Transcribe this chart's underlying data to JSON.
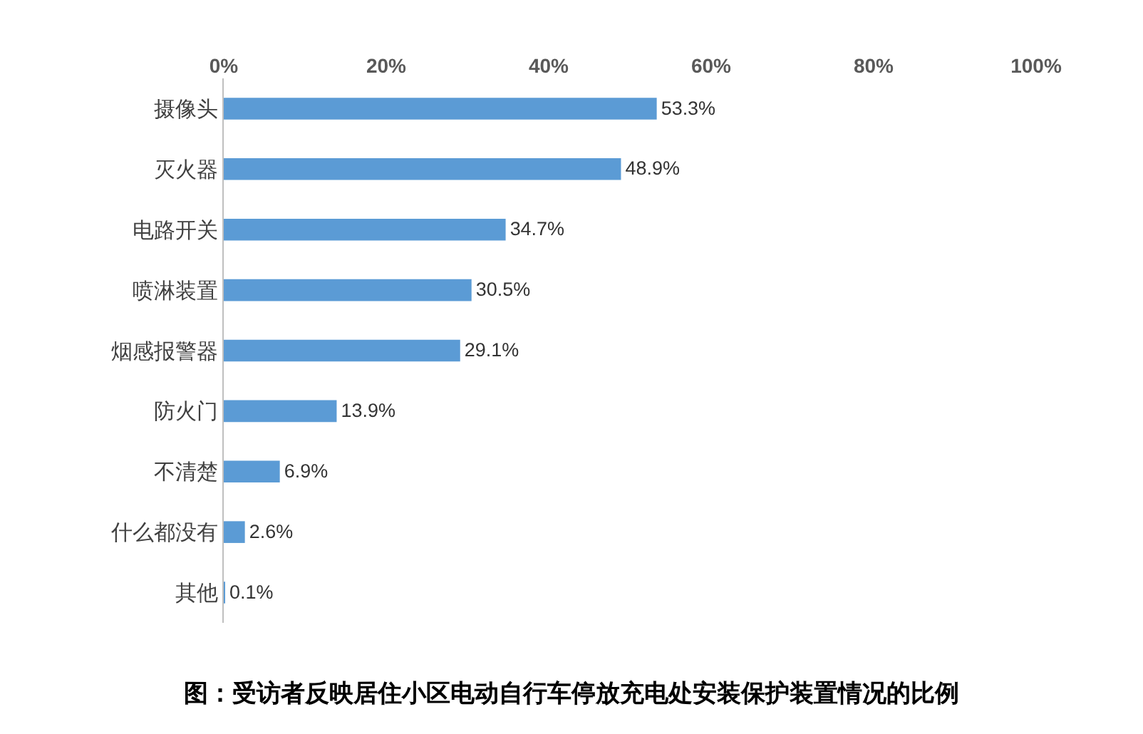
{
  "chart_data": {
    "type": "bar",
    "orientation": "horizontal",
    "categories": [
      "摄像头",
      "灭火器",
      "电路开关",
      "喷淋装置",
      "烟感报警器",
      "防火门",
      "不清楚",
      "什么都没有",
      "其他"
    ],
    "values": [
      53.3,
      48.9,
      34.7,
      30.5,
      29.1,
      13.9,
      6.9,
      2.6,
      0.1
    ],
    "value_labels": [
      "53.3%",
      "48.9%",
      "34.7%",
      "30.5%",
      "29.1%",
      "13.9%",
      "6.9%",
      "2.6%",
      "0.1%"
    ],
    "color": "#5b9bd5",
    "xlim": [
      0,
      100
    ],
    "xticks": [
      {
        "value": 0,
        "label": "0%"
      },
      {
        "value": 20,
        "label": "20%"
      },
      {
        "value": 40,
        "label": "40%"
      },
      {
        "value": 60,
        "label": "60%"
      },
      {
        "value": 80,
        "label": "80%"
      },
      {
        "value": 100,
        "label": "100%"
      }
    ],
    "grid": false,
    "annotations": [
      "图：受访者反映居住小区电动自行车停放充电处安装保护装置情况的比例"
    ]
  }
}
